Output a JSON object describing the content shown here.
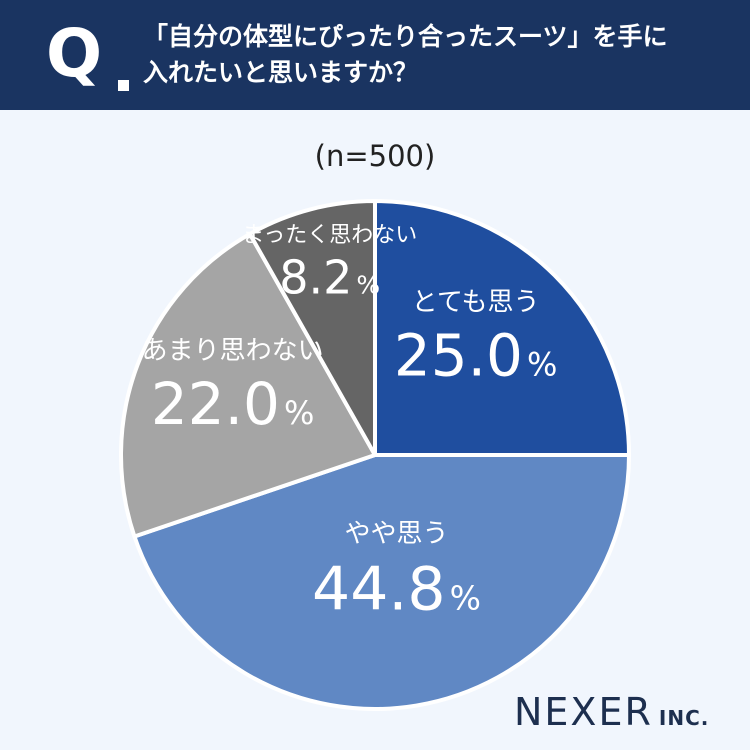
{
  "header": {
    "q_label": "Q",
    "question_line1": "「自分の体型にぴったり合ったスーツ」を手に",
    "question_line2": "入れたいと思いますか？"
  },
  "sample_label": "(n=500)",
  "chart_data": {
    "type": "pie",
    "start": "12 o'clock",
    "direction": "clockwise",
    "unit": "%",
    "slices": [
      {
        "label": "とても思う",
        "value": 25.0,
        "display": "25.0",
        "color": "#1f4e9f"
      },
      {
        "label": "やや思う",
        "value": 44.8,
        "display": "44.8",
        "color": "#6088c4"
      },
      {
        "label": "あまり思わない",
        "value": 22.0,
        "display": "22.0",
        "color": "#a5a5a5"
      },
      {
        "label": "まったく思わない",
        "value": 8.2,
        "display": "8.2",
        "color": "#656565"
      }
    ]
  },
  "logo": {
    "main": "NEXER",
    "sub": "INC."
  }
}
